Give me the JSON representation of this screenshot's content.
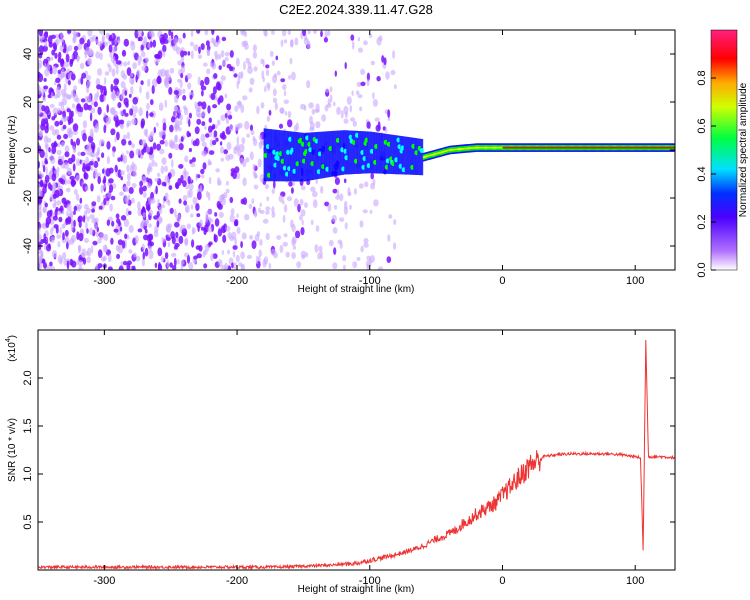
{
  "title": "C2E2.2024.339.11.47.G28",
  "chart_data": [
    {
      "type": "heatmap",
      "xlabel": "Height of straight line (km)",
      "ylabel": "Frequency (Hz)",
      "xlim": [
        -350,
        130
      ],
      "ylim": [
        -50,
        50
      ],
      "xticks": [
        -300,
        -200,
        -100,
        0,
        100
      ],
      "yticks": [
        -40,
        -20,
        0,
        20,
        40
      ],
      "colorbar": {
        "label": "Normalized spectral amplitude",
        "range": [
          0,
          1
        ],
        "ticks": [
          0.0,
          0.2,
          0.4,
          0.6,
          0.8
        ],
        "tick_labels": [
          "0.0",
          "0.2",
          "0.4",
          "0.6",
          "0.8"
        ],
        "colors": [
          "#ffffff",
          "#8a00ff",
          "#0000ff",
          "#00ffff",
          "#00ff00",
          "#ffff00",
          "#ff0000",
          "#ff0088"
        ]
      },
      "signal_track": [
        {
          "x": -180,
          "f": -2
        },
        {
          "x": -150,
          "f": -3
        },
        {
          "x": -120,
          "f": -1
        },
        {
          "x": -100,
          "f": -1
        },
        {
          "x": -80,
          "f": -2
        },
        {
          "x": -60,
          "f": -3
        },
        {
          "x": -40,
          "f": 0
        },
        {
          "x": -20,
          "f": 1
        },
        {
          "x": 0,
          "f": 1
        },
        {
          "x": 40,
          "f": 1
        },
        {
          "x": 80,
          "f": 1
        },
        {
          "x": 110,
          "f": 1
        },
        {
          "x": 130,
          "f": 1
        }
      ],
      "noise_region": [
        -350,
        -120
      ]
    },
    {
      "type": "line",
      "xlabel": "Height of straight line (km)",
      "ylabel": "SNR (10 * v/v)",
      "y_multiplier": "(x10",
      "y_multiplier_exp": "4",
      "y_multiplier_close": ")",
      "xlim": [
        -350,
        130
      ],
      "ylim": [
        0,
        2.5
      ],
      "xticks": [
        -300,
        -200,
        -100,
        0,
        100
      ],
      "yticks": [
        0.5,
        1.0,
        1.5,
        2.0
      ],
      "ytick_labels": [
        "0.5",
        "1.0",
        "1.5",
        "2.0"
      ],
      "color": "#ee3333",
      "series": [
        {
          "x": [
            -350,
            -300,
            -250,
            -200,
            -170,
            -150,
            -130,
            -110,
            -100,
            -90,
            -80,
            -70,
            -60,
            -50,
            -40,
            -35,
            -30,
            -25,
            -20,
            -15,
            -10,
            -5,
            0,
            5,
            10,
            15,
            20,
            25,
            30,
            40,
            50,
            60,
            70,
            80,
            90,
            100,
            104,
            106,
            108,
            110,
            115,
            120,
            130
          ],
          "y": [
            0.03,
            0.03,
            0.03,
            0.03,
            0.03,
            0.04,
            0.05,
            0.07,
            0.1,
            0.13,
            0.16,
            0.2,
            0.25,
            0.32,
            0.38,
            0.42,
            0.48,
            0.52,
            0.58,
            0.62,
            0.66,
            0.7,
            0.78,
            0.85,
            0.93,
            1.0,
            1.08,
            1.13,
            1.18,
            1.2,
            1.21,
            1.21,
            1.21,
            1.21,
            1.2,
            1.18,
            1.17,
            0.2,
            2.4,
            1.18,
            1.18,
            1.18,
            1.17
          ]
        }
      ]
    }
  ]
}
